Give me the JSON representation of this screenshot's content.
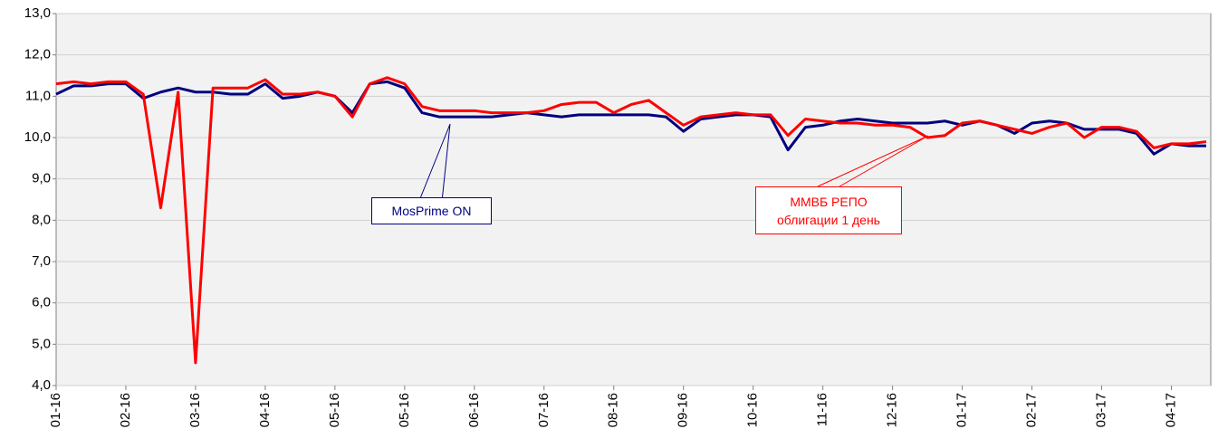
{
  "chart_data": {
    "type": "line",
    "categories": [
      "01-16",
      null,
      null,
      null,
      "02-16",
      null,
      null,
      null,
      "03-16",
      null,
      null,
      null,
      "04-16",
      null,
      null,
      null,
      "05-16",
      null,
      null,
      null,
      "05-16",
      null,
      null,
      null,
      "06-16",
      null,
      null,
      null,
      "07-16",
      null,
      null,
      null,
      "08-16",
      null,
      null,
      null,
      "09-16",
      null,
      null,
      null,
      "10-16",
      null,
      null,
      null,
      "11-16",
      null,
      null,
      null,
      "12-16",
      null,
      null,
      null,
      "01-17",
      null,
      null,
      null,
      "02-17",
      null,
      null,
      null,
      "03-17",
      null,
      null,
      null,
      "04-17",
      null,
      null
    ],
    "series": [
      {
        "name": "MosPrime ON",
        "color": "#000080",
        "values": [
          11.05,
          11.25,
          11.25,
          11.3,
          11.3,
          10.95,
          11.1,
          11.2,
          11.1,
          11.1,
          11.05,
          11.05,
          11.3,
          10.95,
          11.0,
          11.1,
          11.0,
          10.6,
          11.3,
          11.35,
          11.2,
          10.6,
          10.5,
          10.5,
          10.5,
          10.5,
          10.55,
          10.6,
          10.55,
          10.5,
          10.55,
          10.55,
          10.55,
          10.55,
          10.55,
          10.5,
          10.15,
          10.45,
          10.5,
          10.55,
          10.55,
          10.5,
          9.7,
          10.25,
          10.3,
          10.4,
          10.45,
          10.4,
          10.35,
          10.35,
          10.35,
          10.4,
          10.3,
          10.4,
          10.3,
          10.1,
          10.35,
          10.4,
          10.35,
          10.2,
          10.2,
          10.2,
          10.1,
          9.6,
          9.85,
          9.8,
          9.8
        ]
      },
      {
        "name": "ММВБ РЕПО\nоблигации 1 день",
        "color": "#ff0000",
        "values": [
          11.3,
          11.35,
          11.3,
          11.35,
          11.35,
          11.05,
          8.3,
          11.1,
          4.55,
          11.2,
          11.2,
          11.2,
          11.4,
          11.05,
          11.05,
          11.1,
          11.0,
          10.5,
          11.3,
          11.45,
          11.3,
          10.75,
          10.65,
          10.65,
          10.65,
          10.6,
          10.6,
          10.6,
          10.65,
          10.8,
          10.85,
          10.85,
          10.6,
          10.8,
          10.9,
          10.6,
          10.3,
          10.5,
          10.55,
          10.6,
          10.55,
          10.55,
          10.05,
          10.45,
          10.4,
          10.35,
          10.35,
          10.3,
          10.3,
          10.25,
          10.0,
          10.05,
          10.35,
          10.4,
          10.3,
          10.2,
          10.1,
          10.25,
          10.35,
          10.0,
          10.25,
          10.25,
          10.15,
          9.75,
          9.85,
          9.85,
          9.9
        ]
      }
    ],
    "ylim": [
      4,
      13
    ],
    "yticks": [
      {
        "value": 4,
        "label": "4,0"
      },
      {
        "value": 5,
        "label": "5,0"
      },
      {
        "value": 6,
        "label": "6,0"
      },
      {
        "value": 7,
        "label": "7,0"
      },
      {
        "value": 8,
        "label": "8,0"
      },
      {
        "value": 9,
        "label": "9,0"
      },
      {
        "value": 10,
        "label": "10,0"
      },
      {
        "value": 11,
        "label": "11,0"
      },
      {
        "value": 12,
        "label": "12,0"
      },
      {
        "value": 13,
        "label": "13,0"
      }
    ],
    "grid": true
  }
}
